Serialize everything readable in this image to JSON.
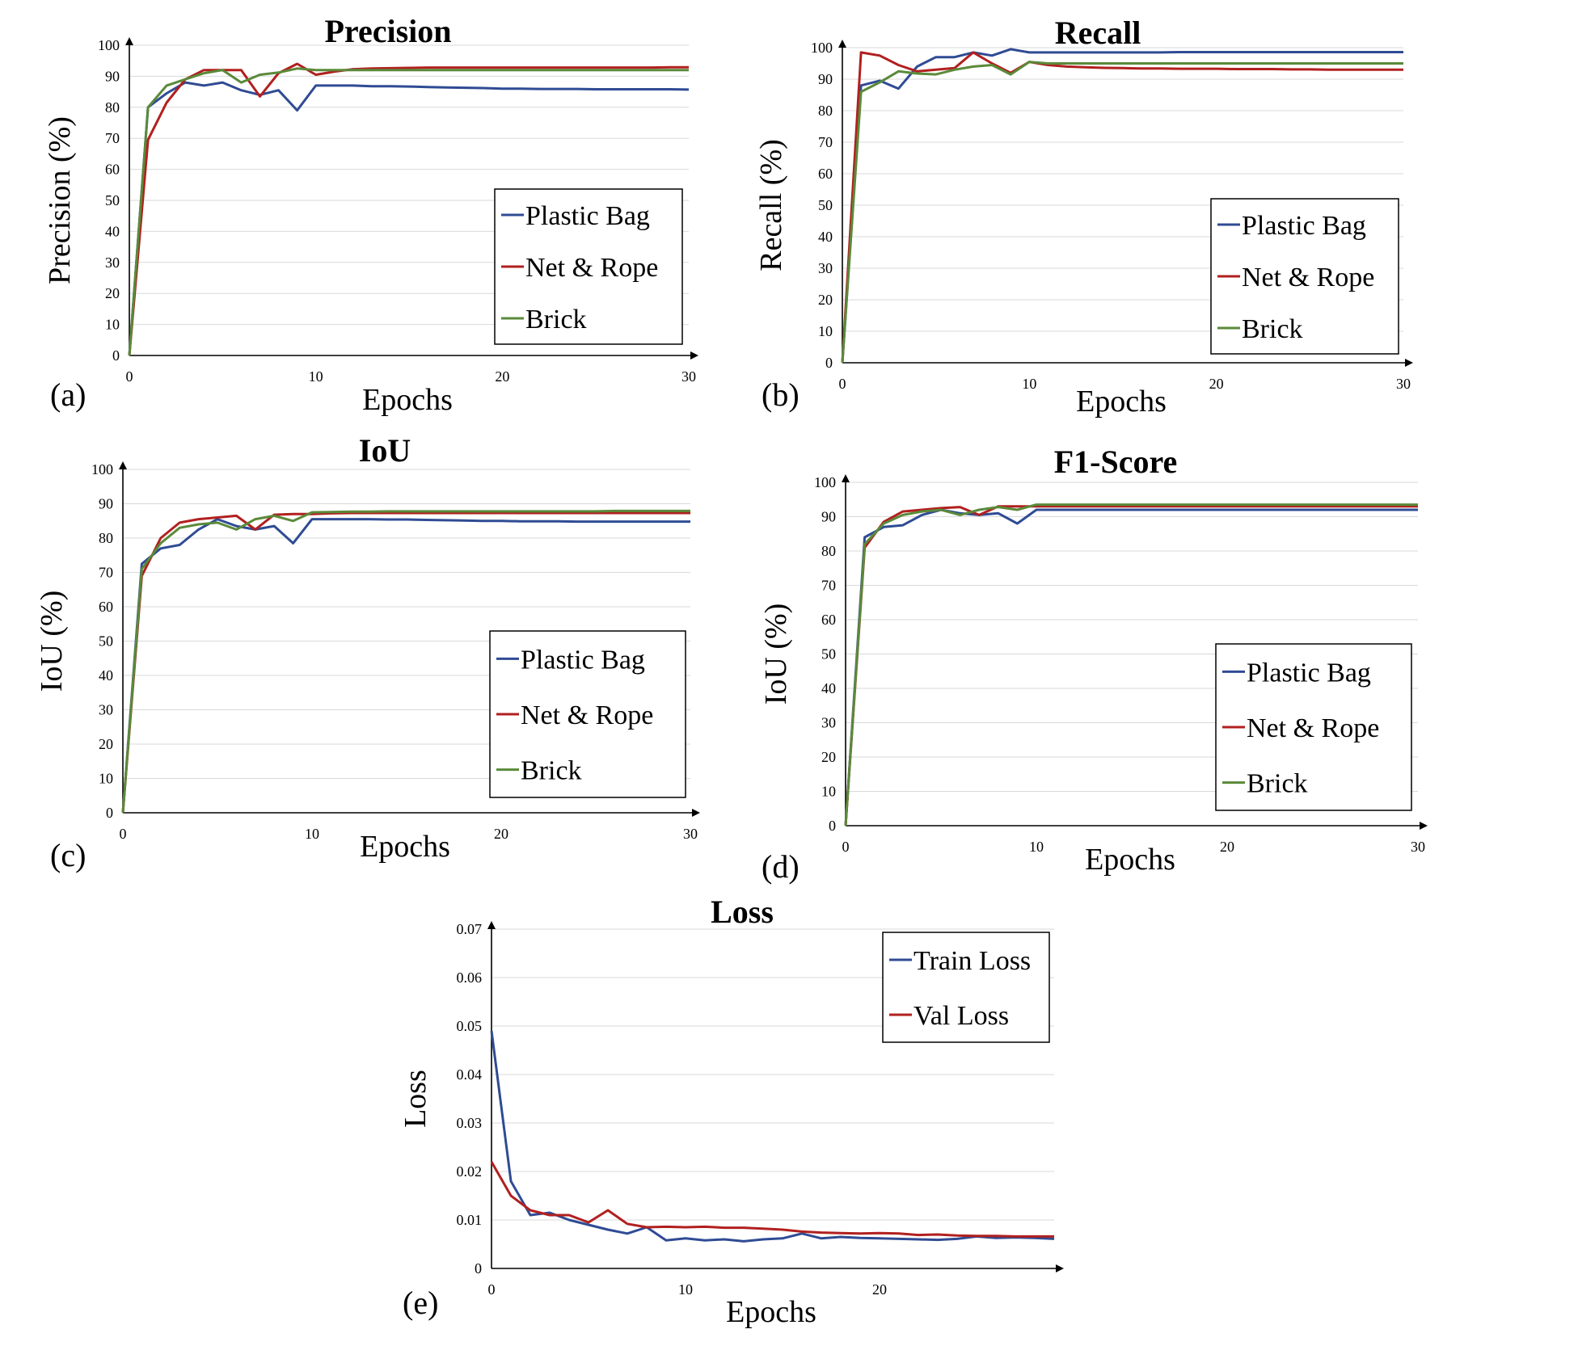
{
  "colors": {
    "blue": "#2f4b94",
    "red": "#b1201f",
    "green": "#5a8a3a"
  },
  "chart_data": [
    {
      "id": "a",
      "panel_label": "(a)",
      "type": "line",
      "title": "Precision",
      "xlabel": "Epochs",
      "ylabel": "Precision (%)",
      "xlim": [
        0,
        30
      ],
      "ylim": [
        0,
        100
      ],
      "xticks": [
        0,
        10,
        20,
        30
      ],
      "yticks": [
        0,
        10,
        20,
        30,
        40,
        50,
        60,
        70,
        80,
        90,
        100
      ],
      "x": [
        0,
        1,
        2,
        3,
        4,
        5,
        6,
        7,
        8,
        9,
        10,
        11,
        12,
        13,
        14,
        15,
        16,
        17,
        18,
        19,
        20,
        21,
        22,
        23,
        24,
        25,
        26,
        27,
        28,
        29,
        30
      ],
      "legend": "bottom-right",
      "grid": true,
      "series": [
        {
          "name": "Plastic Bag",
          "color": "blue",
          "values": [
            0,
            80,
            84.5,
            88,
            87,
            88,
            85.5,
            84,
            85.5,
            79,
            87,
            87,
            87,
            86.8,
            86.8,
            86.7,
            86.5,
            86.4,
            86.3,
            86.2,
            86,
            86,
            85.9,
            85.9,
            85.9,
            85.8,
            85.8,
            85.8,
            85.8,
            85.8,
            85.7
          ]
        },
        {
          "name": "Net & Rope",
          "color": "red",
          "values": [
            0,
            69.5,
            81.5,
            89,
            92,
            92,
            92,
            83.5,
            91,
            94,
            90.5,
            91.5,
            92.3,
            92.5,
            92.6,
            92.7,
            92.8,
            92.8,
            92.8,
            92.8,
            92.8,
            92.8,
            92.8,
            92.8,
            92.8,
            92.8,
            92.8,
            92.8,
            92.8,
            92.9,
            92.9
          ]
        },
        {
          "name": "Brick",
          "color": "green",
          "values": [
            0,
            80,
            87,
            89,
            91,
            92,
            88,
            90.5,
            91.2,
            92.5,
            92,
            92,
            92,
            92,
            92,
            92,
            92,
            92,
            92,
            92,
            92,
            92,
            92,
            92,
            92,
            92,
            92,
            92,
            92,
            92,
            92
          ]
        }
      ]
    },
    {
      "id": "b",
      "panel_label": "(b)",
      "type": "line",
      "title": "Recall",
      "xlabel": "Epochs",
      "ylabel": "Recall (%)",
      "xlim": [
        0,
        30
      ],
      "ylim": [
        0,
        100
      ],
      "xticks": [
        0,
        10,
        20,
        30
      ],
      "yticks": [
        0,
        10,
        20,
        30,
        40,
        50,
        60,
        70,
        80,
        90,
        100
      ],
      "x": [
        0,
        1,
        2,
        3,
        4,
        5,
        6,
        7,
        8,
        9,
        10,
        11,
        12,
        13,
        14,
        15,
        16,
        17,
        18,
        19,
        20,
        21,
        22,
        23,
        24,
        25,
        26,
        27,
        28,
        29,
        30
      ],
      "legend": "bottom-right",
      "grid": true,
      "series": [
        {
          "name": "Plastic Bag",
          "color": "blue",
          "values": [
            0,
            88,
            89.5,
            87,
            94,
            97,
            97,
            98.5,
            97.5,
            99.5,
            98.5,
            98.5,
            98.5,
            98.5,
            98.5,
            98.5,
            98.5,
            98.5,
            98.6,
            98.6,
            98.6,
            98.6,
            98.6,
            98.6,
            98.6,
            98.6,
            98.6,
            98.6,
            98.6,
            98.6,
            98.6
          ]
        },
        {
          "name": "Net & Rope",
          "color": "red",
          "values": [
            0,
            98.5,
            97.5,
            94.5,
            92.5,
            93,
            93.5,
            98.5,
            95,
            92,
            95.5,
            94.5,
            94,
            93.8,
            93.6,
            93.5,
            93.4,
            93.4,
            93.3,
            93.3,
            93.3,
            93.2,
            93.2,
            93.2,
            93.1,
            93.1,
            93,
            93,
            93,
            93,
            93
          ]
        },
        {
          "name": "Brick",
          "color": "green",
          "values": [
            0,
            86,
            89,
            92.5,
            91.8,
            91.5,
            93,
            94,
            94.5,
            91.5,
            95.5,
            95,
            95,
            95,
            95,
            95,
            95,
            95,
            95,
            95,
            95,
            95,
            95,
            95,
            95,
            95,
            95,
            95,
            95,
            95,
            95
          ]
        }
      ]
    },
    {
      "id": "c",
      "panel_label": "(c)",
      "type": "line",
      "title": "IoU",
      "xlabel": "Epochs",
      "ylabel": "IoU (%)",
      "xlim": [
        0,
        30
      ],
      "ylim": [
        0,
        100
      ],
      "xticks": [
        0,
        10,
        20,
        30
      ],
      "yticks": [
        0,
        10,
        20,
        30,
        40,
        50,
        60,
        70,
        80,
        90,
        100
      ],
      "x": [
        0,
        1,
        2,
        3,
        4,
        5,
        6,
        7,
        8,
        9,
        10,
        11,
        12,
        13,
        14,
        15,
        16,
        17,
        18,
        19,
        20,
        21,
        22,
        23,
        24,
        25,
        26,
        27,
        28,
        29,
        30
      ],
      "legend": "bottom-right",
      "grid": true,
      "series": [
        {
          "name": "Plastic Bag",
          "color": "blue",
          "values": [
            0,
            72.5,
            77,
            78,
            82.5,
            85.5,
            83.5,
            82.5,
            83.5,
            78.5,
            85.5,
            85.5,
            85.5,
            85.5,
            85.4,
            85.4,
            85.3,
            85.2,
            85.1,
            85,
            85,
            84.9,
            84.9,
            84.9,
            84.8,
            84.8,
            84.8,
            84.8,
            84.8,
            84.8,
            84.8
          ]
        },
        {
          "name": "Net & Rope",
          "color": "red",
          "values": [
            0,
            69,
            80,
            84.5,
            85.5,
            86,
            86.5,
            82.5,
            86.8,
            87,
            87,
            87.2,
            87.3,
            87.3,
            87.3,
            87.3,
            87.3,
            87.3,
            87.3,
            87.3,
            87.3,
            87.3,
            87.3,
            87.3,
            87.3,
            87.3,
            87.3,
            87.3,
            87.3,
            87.3,
            87.3
          ]
        },
        {
          "name": "Brick",
          "color": "green",
          "values": [
            0,
            71,
            78.5,
            83,
            84,
            84.5,
            82.5,
            85.5,
            86.5,
            85,
            87.5,
            87.6,
            87.7,
            87.7,
            87.8,
            87.8,
            87.8,
            87.8,
            87.8,
            87.8,
            87.8,
            87.8,
            87.8,
            87.8,
            87.8,
            87.8,
            87.9,
            87.9,
            87.9,
            87.9,
            87.9
          ]
        }
      ]
    },
    {
      "id": "d",
      "panel_label": "(d)",
      "type": "line",
      "title": "F1-Score",
      "xlabel": "Epochs",
      "ylabel": "IoU (%)",
      "xlim": [
        0,
        30
      ],
      "ylim": [
        0,
        100
      ],
      "xticks": [
        0,
        10,
        20,
        30
      ],
      "yticks": [
        0,
        10,
        20,
        30,
        40,
        50,
        60,
        70,
        80,
        90,
        100
      ],
      "x": [
        0,
        1,
        2,
        3,
        4,
        5,
        6,
        7,
        8,
        9,
        10,
        11,
        12,
        13,
        14,
        15,
        16,
        17,
        18,
        19,
        20,
        21,
        22,
        23,
        24,
        25,
        26,
        27,
        28,
        29,
        30
      ],
      "legend": "bottom-right",
      "grid": true,
      "series": [
        {
          "name": "Plastic Bag",
          "color": "blue",
          "values": [
            0,
            84,
            87,
            87.5,
            90.5,
            92,
            91,
            90.5,
            91,
            88,
            92,
            92,
            92,
            92,
            92,
            92,
            92,
            92,
            92,
            92,
            92,
            92,
            92,
            92,
            92,
            92,
            92,
            92,
            92,
            92,
            92
          ]
        },
        {
          "name": "Net & Rope",
          "color": "red",
          "values": [
            0,
            81,
            88.5,
            91.5,
            92,
            92.5,
            92.8,
            90.5,
            93,
            93,
            93,
            93,
            93,
            93,
            93,
            93,
            93,
            93,
            93,
            93,
            93,
            93,
            93,
            93,
            93,
            93,
            93,
            93,
            93,
            93,
            93
          ]
        },
        {
          "name": "Brick",
          "color": "green",
          "values": [
            0,
            82,
            88,
            90.5,
            91.5,
            92,
            90.5,
            92,
            92.8,
            92,
            93.5,
            93.5,
            93.5,
            93.5,
            93.5,
            93.5,
            93.5,
            93.5,
            93.5,
            93.5,
            93.5,
            93.5,
            93.5,
            93.5,
            93.5,
            93.5,
            93.5,
            93.5,
            93.5,
            93.5,
            93.5
          ]
        }
      ]
    },
    {
      "id": "e",
      "panel_label": "(e)",
      "type": "line",
      "title": "Loss",
      "xlabel": "Epochs",
      "ylabel": "Loss",
      "xlim": [
        0,
        29
      ],
      "ylim": [
        0,
        0.07
      ],
      "xticks": [
        0,
        10,
        20
      ],
      "yticks": [
        0,
        0.01,
        0.02,
        0.03,
        0.04,
        0.05,
        0.06,
        0.07
      ],
      "x": [
        0,
        1,
        2,
        3,
        4,
        5,
        6,
        7,
        8,
        9,
        10,
        11,
        12,
        13,
        14,
        15,
        16,
        17,
        18,
        19,
        20,
        21,
        22,
        23,
        24,
        25,
        26,
        27,
        28,
        29
      ],
      "legend": "top-right",
      "grid": true,
      "series": [
        {
          "name": "Train Loss",
          "color": "blue",
          "values": [
            0.049,
            0.018,
            0.011,
            0.0115,
            0.01,
            0.009,
            0.008,
            0.0072,
            0.0085,
            0.0058,
            0.0062,
            0.0058,
            0.006,
            0.0056,
            0.006,
            0.0062,
            0.0072,
            0.0062,
            0.0065,
            0.0063,
            0.0062,
            0.0061,
            0.006,
            0.0059,
            0.0061,
            0.0066,
            0.0063,
            0.0064,
            0.0063,
            0.0061
          ]
        },
        {
          "name": "Val Loss",
          "color": "red",
          "values": [
            0.022,
            0.015,
            0.012,
            0.011,
            0.011,
            0.0095,
            0.012,
            0.0092,
            0.0085,
            0.0086,
            0.0085,
            0.0086,
            0.0084,
            0.0084,
            0.0082,
            0.008,
            0.0076,
            0.0074,
            0.0073,
            0.0072,
            0.0073,
            0.0072,
            0.0069,
            0.007,
            0.0068,
            0.0067,
            0.0067,
            0.0066,
            0.0066,
            0.0066
          ]
        }
      ]
    }
  ]
}
